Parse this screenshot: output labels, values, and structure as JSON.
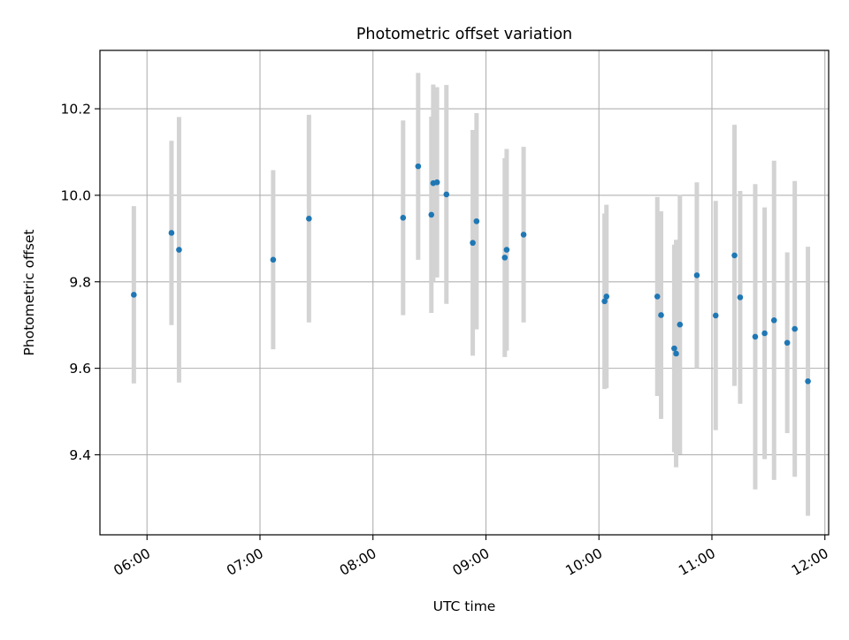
{
  "chart_data": {
    "type": "scatter",
    "title": "Photometric offset variation",
    "xlabel": "UTC time",
    "ylabel": "Photometric offset",
    "x_unit": "hours UTC",
    "xlim": [
      "05:35",
      "12:02"
    ],
    "ylim": [
      9.215,
      10.335
    ],
    "x_ticks": [
      "06:00",
      "07:00",
      "08:00",
      "09:00",
      "10:00",
      "11:00",
      "12:00"
    ],
    "y_ticks": [
      "9.4",
      "9.6",
      "9.8",
      "10.0",
      "10.2"
    ],
    "grid": true,
    "legend": "none",
    "colors": {
      "point": "#1f77b4",
      "errorbar": "#d3d3d3",
      "grid": "#b0b0b0"
    },
    "series": [
      {
        "points": [
          {
            "x": "05:53",
            "y": 9.77,
            "err": 0.205
          },
          {
            "x": "06:13",
            "y": 9.913,
            "err": 0.213
          },
          {
            "x": "06:17",
            "y": 9.874,
            "err": 0.307
          },
          {
            "x": "07:07",
            "y": 9.851,
            "err": 0.207
          },
          {
            "x": "07:26",
            "y": 9.946,
            "err": 0.24
          },
          {
            "x": "08:16",
            "y": 9.948,
            "err": 0.225
          },
          {
            "x": "08:24",
            "y": 10.067,
            "err": 0.216
          },
          {
            "x": "08:31",
            "y": 9.955,
            "err": 0.227
          },
          {
            "x": "08:32",
            "y": 10.028,
            "err": 0.228
          },
          {
            "x": "08:34",
            "y": 10.03,
            "err": 0.22
          },
          {
            "x": "08:39",
            "y": 10.002,
            "err": 0.253
          },
          {
            "x": "08:53",
            "y": 9.89,
            "err": 0.261
          },
          {
            "x": "08:55",
            "y": 9.94,
            "err": 0.25
          },
          {
            "x": "09:10",
            "y": 9.856,
            "err": 0.23
          },
          {
            "x": "09:11",
            "y": 9.874,
            "err": 0.233
          },
          {
            "x": "09:20",
            "y": 9.909,
            "err": 0.203
          },
          {
            "x": "10:03",
            "y": 9.755,
            "err": 0.203
          },
          {
            "x": "10:04",
            "y": 9.766,
            "err": 0.212
          },
          {
            "x": "10:31",
            "y": 9.766,
            "err": 0.23
          },
          {
            "x": "10:33",
            "y": 9.723,
            "err": 0.24
          },
          {
            "x": "10:40",
            "y": 9.646,
            "err": 0.24
          },
          {
            "x": "10:41",
            "y": 9.634,
            "err": 0.263
          },
          {
            "x": "10:43",
            "y": 9.701,
            "err": 0.3
          },
          {
            "x": "10:52",
            "y": 9.815,
            "err": 0.215
          },
          {
            "x": "11:02",
            "y": 9.722,
            "err": 0.265
          },
          {
            "x": "11:12",
            "y": 9.861,
            "err": 0.302
          },
          {
            "x": "11:15",
            "y": 9.764,
            "err": 0.246
          },
          {
            "x": "11:23",
            "y": 9.673,
            "err": 0.353
          },
          {
            "x": "11:28",
            "y": 9.681,
            "err": 0.291
          },
          {
            "x": "11:33",
            "y": 9.711,
            "err": 0.369
          },
          {
            "x": "11:40",
            "y": 9.659,
            "err": 0.209
          },
          {
            "x": "11:44",
            "y": 9.691,
            "err": 0.342
          },
          {
            "x": "11:51",
            "y": 9.57,
            "err": 0.311
          }
        ]
      }
    ]
  }
}
